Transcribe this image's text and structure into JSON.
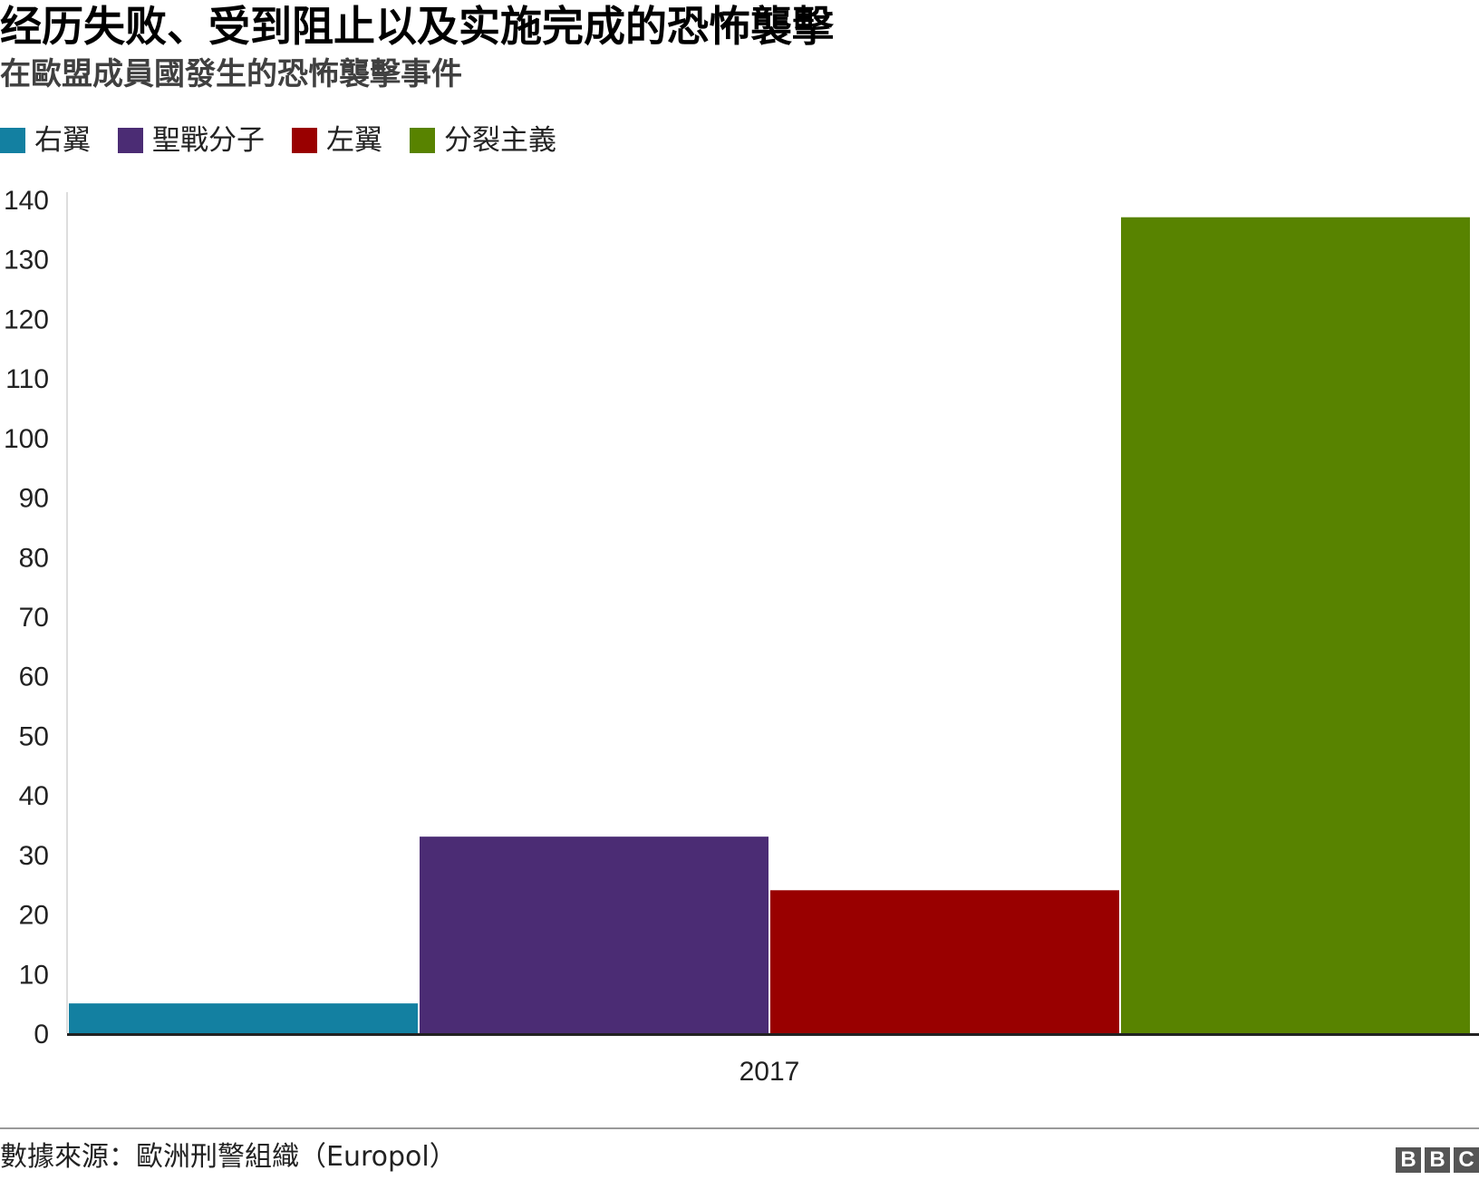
{
  "header": {
    "title": "经历失败、受到阻止以及实施完成的恐怖襲擊",
    "subtitle": "在歐盟成員國發生的恐怖襲擊事件"
  },
  "legend": [
    {
      "label": "右翼",
      "color": "#1380a1"
    },
    {
      "label": "聖戰分子",
      "color": "#4b2c74"
    },
    {
      "label": "左翼",
      "color": "#990000"
    },
    {
      "label": "分裂主義",
      "color": "#588300"
    }
  ],
  "chart_data": {
    "type": "bar",
    "title": "经历失败、受到阻止以及实施完成的恐怖襲擊",
    "subtitle": "在歐盟成員國發生的恐怖襲擊事件",
    "categories": [
      "2017"
    ],
    "series": [
      {
        "name": "右翼",
        "values": [
          5
        ],
        "color": "#1380a1"
      },
      {
        "name": "聖戰分子",
        "values": [
          33
        ],
        "color": "#4b2c74"
      },
      {
        "name": "左翼",
        "values": [
          24
        ],
        "color": "#990000"
      },
      {
        "name": "分裂主義",
        "values": [
          137
        ],
        "color": "#588300"
      }
    ],
    "ylim": [
      0,
      140
    ],
    "yticks": [
      0,
      10,
      20,
      30,
      40,
      50,
      60,
      70,
      80,
      90,
      100,
      110,
      120,
      130,
      140
    ],
    "xlabel": "",
    "ylabel": "",
    "grid": false,
    "legend_position": "top-left"
  },
  "footer": {
    "source": "數據來源：歐洲刑警組織（Europol）",
    "logo": [
      "B",
      "B",
      "C"
    ]
  }
}
